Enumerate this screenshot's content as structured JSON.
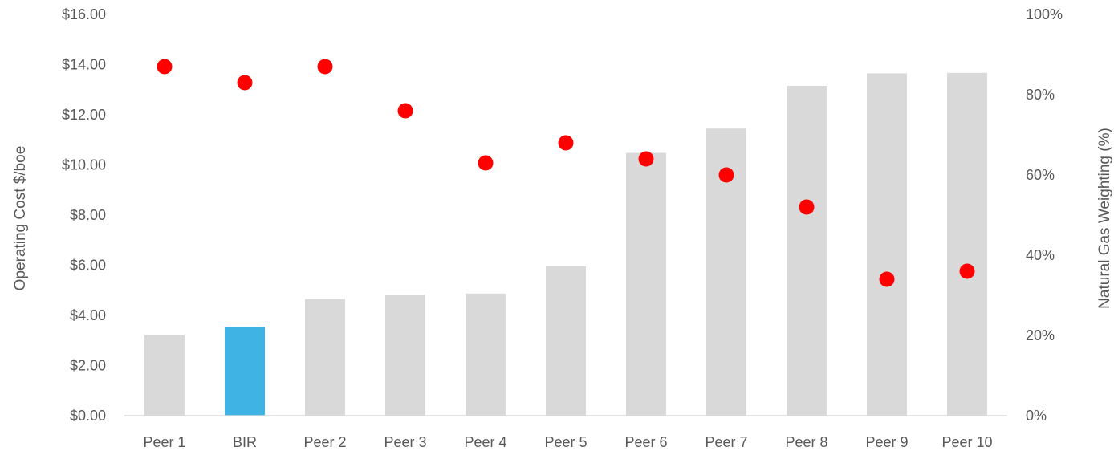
{
  "chart_data": {
    "type": "bar",
    "categories": [
      "Peer 1",
      "BIR",
      "Peer 2",
      "Peer 3",
      "Peer 4",
      "Peer 5",
      "Peer 6",
      "Peer 7",
      "Peer 8",
      "Peer 9",
      "Peer 10"
    ],
    "series": [
      {
        "type": "bar",
        "axis": "left",
        "values": [
          3.22,
          3.55,
          4.65,
          4.82,
          4.87,
          5.95,
          10.48,
          11.45,
          13.15,
          13.65,
          13.67
        ],
        "color": "#d9d9d9",
        "highlight": {
          "category": "BIR",
          "color": "#3fb4e4"
        }
      },
      {
        "type": "scatter",
        "axis": "right",
        "values": [
          87,
          83,
          87,
          76,
          63,
          68,
          64,
          60,
          52,
          34,
          36
        ],
        "color": "#ff0000"
      }
    ],
    "ylabel": "Operating Cost $/boe",
    "y2label": "Natural Gas Weighting (%)",
    "ylim": [
      0,
      16
    ],
    "y2lim": [
      0,
      100
    ],
    "yticks": [
      "$0.00",
      "$2.00",
      "$4.00",
      "$6.00",
      "$8.00",
      "$10.00",
      "$12.00",
      "$14.00",
      "$16.00"
    ],
    "y2ticks": [
      "0%",
      "20%",
      "40%",
      "60%",
      "80%",
      "100%"
    ],
    "grid": false,
    "legend": "none"
  }
}
